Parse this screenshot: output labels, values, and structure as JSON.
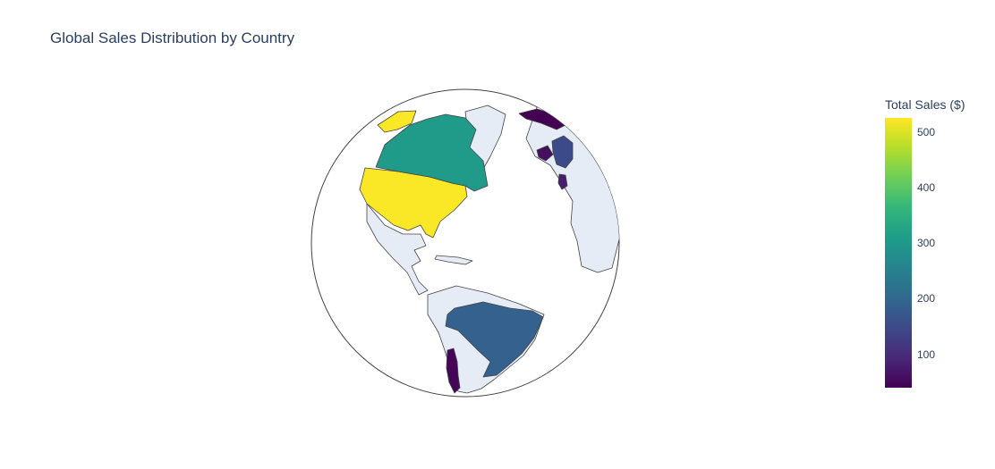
{
  "chart_data": {
    "type": "choropleth",
    "projection": "orthographic",
    "title": "Global Sales Distribution by Country",
    "colorbar": {
      "title": "Total Sales ($)",
      "range": [
        40,
        525
      ],
      "ticks": [
        100,
        200,
        300,
        400,
        500
      ],
      "colorscale": "Viridis"
    },
    "countries": [
      {
        "name": "USA",
        "value": 523
      },
      {
        "name": "Canada",
        "value": 304
      },
      {
        "name": "Brazil",
        "value": 190
      },
      {
        "name": "Chile",
        "value": 45
      },
      {
        "name": "United Kingdom",
        "value": 150
      },
      {
        "name": "Ireland",
        "value": 60
      },
      {
        "name": "Norway",
        "value": 40
      },
      {
        "name": "Portugal",
        "value": 80
      }
    ]
  }
}
